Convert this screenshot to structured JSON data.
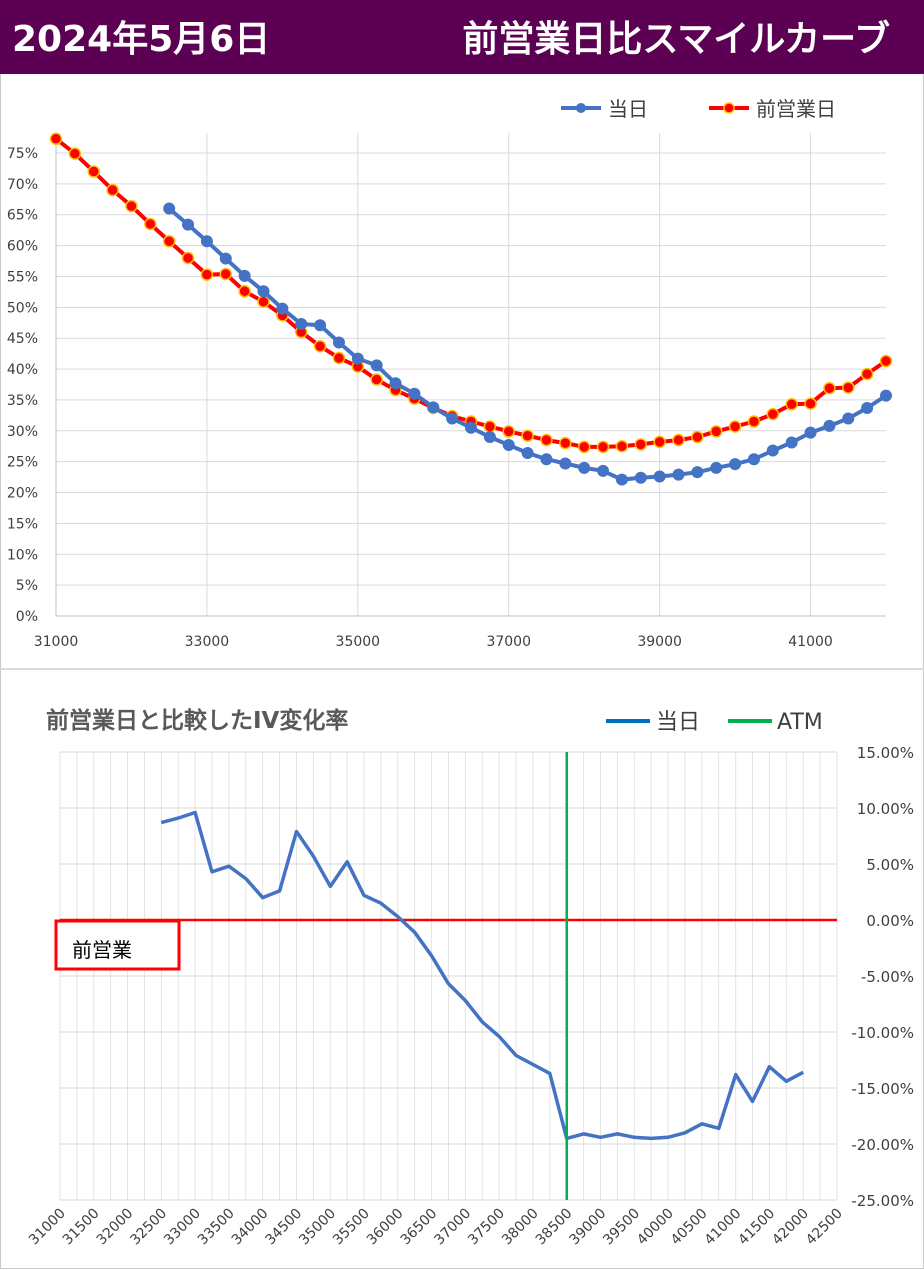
{
  "header": {
    "date": "2024年5月6日",
    "title": "前営業日比スマイルカーブ"
  },
  "colors": {
    "header_bg": "#5b0052",
    "today": "#4472c4",
    "prev": "#ff0000",
    "atm": "#00b050",
    "change": "#4472c4"
  },
  "chart_data": [
    {
      "type": "line",
      "title": "",
      "legend": [
        "当日",
        "前営業日"
      ],
      "legend_position": "top-right",
      "xlim": [
        31000,
        42000
      ],
      "ylim": [
        0,
        0.75
      ],
      "x_ticks": [
        "31000",
        "33000",
        "35000",
        "37000",
        "39000",
        "41000"
      ],
      "y_ticks": [
        "0%",
        "5%",
        "10%",
        "15%",
        "20%",
        "25%",
        "30%",
        "35%",
        "40%",
        "45%",
        "50%",
        "55%",
        "60%",
        "65%",
        "70%",
        "75%"
      ],
      "grid": true,
      "series": [
        {
          "name": "当日",
          "x": [
            32500,
            32750,
            33000,
            33250,
            33500,
            33750,
            34000,
            34250,
            34500,
            34750,
            35000,
            35250,
            35500,
            35750,
            36000,
            36250,
            36500,
            36750,
            37000,
            37250,
            37500,
            37750,
            38000,
            38250,
            38500,
            38750,
            39000,
            39250,
            39500,
            39750,
            40000,
            40250,
            40500,
            40750,
            41000,
            41250,
            41500,
            41750,
            42000
          ],
          "values": [
            0.66,
            0.634,
            0.607,
            0.579,
            0.551,
            0.526,
            0.498,
            0.473,
            0.471,
            0.443,
            0.417,
            0.406,
            0.377,
            0.36,
            0.338,
            0.32,
            0.305,
            0.29,
            0.277,
            0.264,
            0.254,
            0.247,
            0.24,
            0.235,
            0.221,
            0.224,
            0.226,
            0.229,
            0.233,
            0.24,
            0.246,
            0.254,
            0.268,
            0.281,
            0.297,
            0.308,
            0.32,
            0.337,
            0.357
          ]
        },
        {
          "name": "前営業日",
          "x": [
            31000,
            31250,
            31500,
            31750,
            32000,
            32250,
            32500,
            32750,
            33000,
            33250,
            33500,
            33750,
            34000,
            34250,
            34500,
            34750,
            35000,
            35250,
            35500,
            35750,
            36000,
            36250,
            36500,
            36750,
            37000,
            37250,
            37500,
            37750,
            38000,
            38250,
            38500,
            38750,
            39000,
            39250,
            39500,
            39750,
            40000,
            40250,
            40500,
            40750,
            41000,
            41250,
            41500,
            41750,
            42000
          ],
          "values": [
            0.773,
            0.749,
            0.72,
            0.69,
            0.664,
            0.635,
            0.607,
            0.58,
            0.553,
            0.554,
            0.526,
            0.509,
            0.487,
            0.46,
            0.437,
            0.418,
            0.404,
            0.383,
            0.366,
            0.352,
            0.337,
            0.324,
            0.315,
            0.307,
            0.299,
            0.292,
            0.285,
            0.28,
            0.274,
            0.274,
            0.275,
            0.278,
            0.282,
            0.285,
            0.29,
            0.299,
            0.307,
            0.315,
            0.327,
            0.343,
            0.344,
            0.369,
            0.37,
            0.392,
            0.413
          ]
        }
      ]
    },
    {
      "type": "line",
      "title": "前営業日と比較したIV変化率",
      "legend": [
        "当日",
        "ATM"
      ],
      "legend_position": "top-right",
      "xlim": [
        31000,
        42500
      ],
      "ylim": [
        -0.25,
        0.15
      ],
      "y_axis_side": "right",
      "x_ticks": [
        "31000",
        "31500",
        "32000",
        "32500",
        "33000",
        "33500",
        "34000",
        "34500",
        "35000",
        "35500",
        "36000",
        "36500",
        "37000",
        "37500",
        "38000",
        "38500",
        "39000",
        "39500",
        "40000",
        "40500",
        "41000",
        "41500",
        "42000",
        "42500"
      ],
      "y_ticks": [
        "15.00%",
        "10.00%",
        "5.00%",
        "0.00%",
        "-5.00%",
        "-10.00%",
        "-15.00%",
        "-20.00%",
        "-25.00%"
      ],
      "grid": true,
      "atm_x": 38500,
      "zero_line_label": "前営業",
      "series": [
        {
          "name": "当日",
          "x": [
            32500,
            32750,
            33000,
            33250,
            33500,
            33750,
            34000,
            34250,
            34500,
            34750,
            35000,
            35250,
            35500,
            35750,
            36000,
            36250,
            36500,
            36750,
            37000,
            37250,
            37500,
            37750,
            38000,
            38250,
            38500,
            38750,
            39000,
            39250,
            39500,
            39750,
            40000,
            40250,
            40500,
            40750,
            41000,
            41250,
            41500,
            41750,
            42000
          ],
          "values": [
            0.087,
            0.091,
            0.096,
            0.043,
            0.048,
            0.037,
            0.02,
            0.026,
            0.079,
            0.057,
            0.03,
            0.052,
            0.022,
            0.015,
            0.003,
            -0.011,
            -0.032,
            -0.057,
            -0.072,
            -0.091,
            -0.104,
            -0.121,
            -0.129,
            -0.137,
            -0.195,
            -0.191,
            -0.194,
            -0.191,
            -0.194,
            -0.195,
            -0.194,
            -0.19,
            -0.182,
            -0.186,
            -0.138,
            -0.162,
            -0.131,
            -0.144,
            -0.136
          ]
        },
        {
          "name": "前営業",
          "x": [
            31000,
            42500
          ],
          "values": [
            0,
            0
          ]
        }
      ]
    }
  ]
}
